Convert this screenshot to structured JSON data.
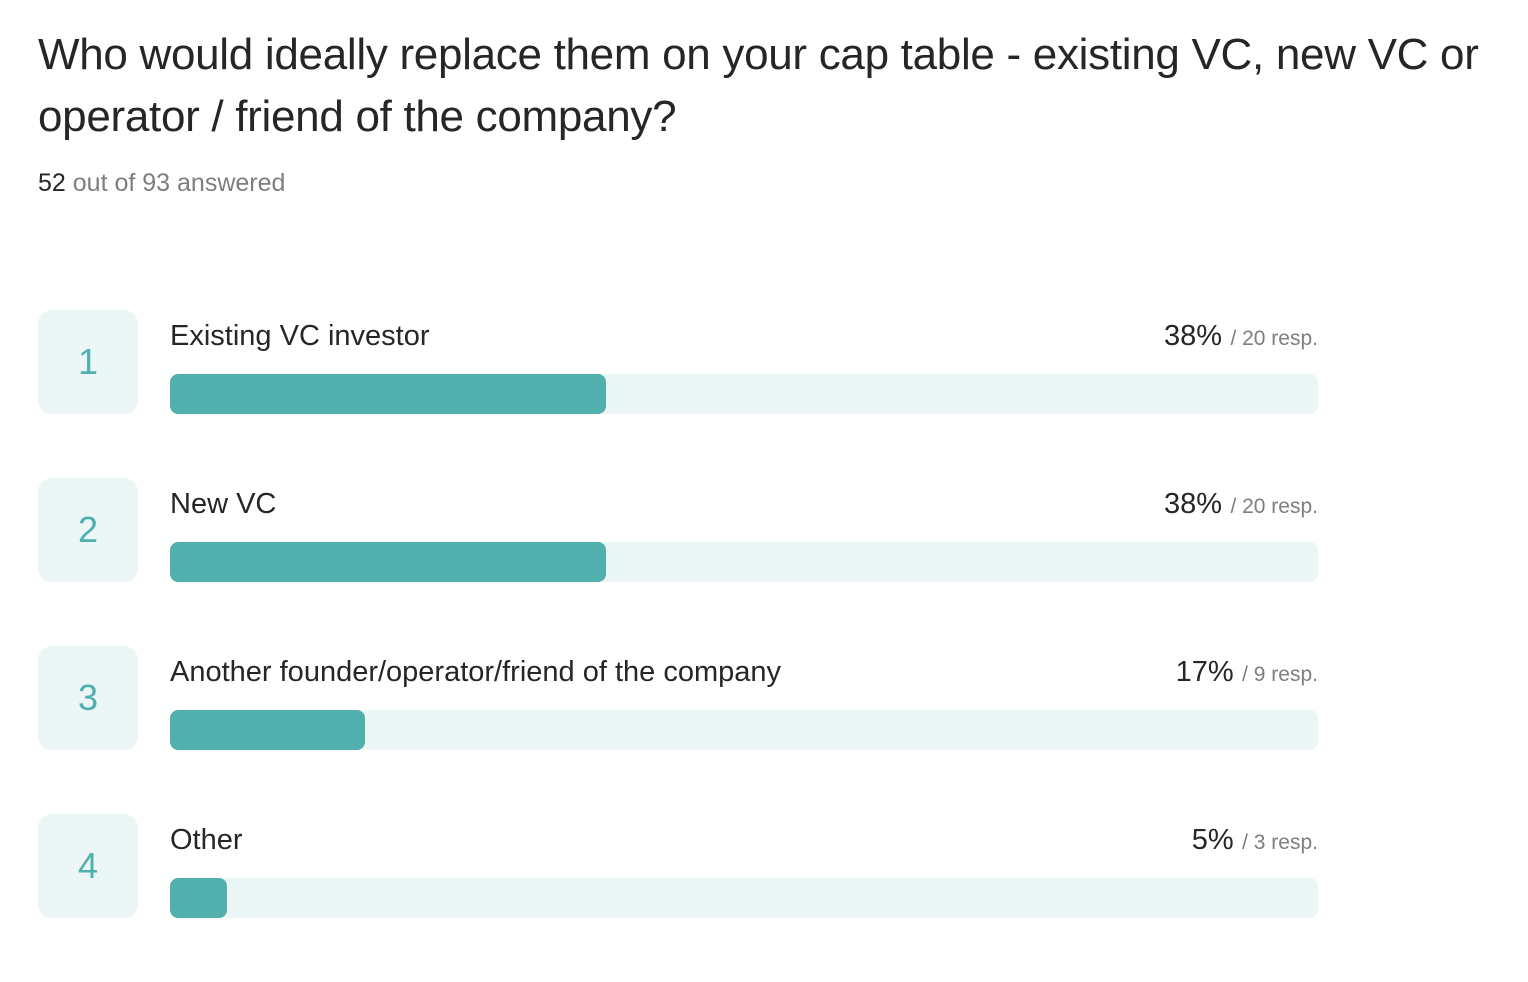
{
  "question": {
    "title": "Who would ideally replace them on your cap table - existing VC, new VC or operator / friend of the company?",
    "answered_count": "52",
    "answered_rest": " out of 93 answered"
  },
  "colors": {
    "bar": "#51b0ae",
    "track": "#edf6f6",
    "rank_text": "#4fb0ad"
  },
  "chart_data": {
    "type": "bar",
    "orientation": "horizontal",
    "title": "Who would ideally replace them on your cap table - existing VC, new VC or operator / friend of the company?",
    "categories": [
      "Existing VC investor",
      "New VC",
      "Another founder/operator/friend of the company",
      "Other"
    ],
    "values": [
      38,
      38,
      17,
      5
    ],
    "responses": [
      20,
      20,
      9,
      3
    ],
    "xlim": [
      0,
      100
    ],
    "rows": [
      {
        "rank": "1",
        "label": "Existing VC investor",
        "percent": 38,
        "percent_text": "38%",
        "resp_text": "/ 20 resp."
      },
      {
        "rank": "2",
        "label": "New VC",
        "percent": 38,
        "percent_text": "38%",
        "resp_text": "/ 20 resp."
      },
      {
        "rank": "3",
        "label": "Another founder/operator/friend of the company",
        "percent": 17,
        "percent_text": "17%",
        "resp_text": "/ 9 resp."
      },
      {
        "rank": "4",
        "label": "Other",
        "percent": 5,
        "percent_text": "5%",
        "resp_text": "/ 3 resp."
      }
    ]
  }
}
